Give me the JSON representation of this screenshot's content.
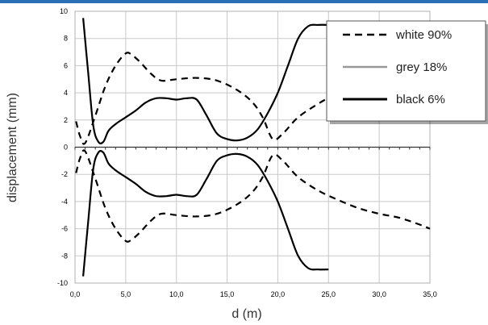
{
  "chart_data": {
    "type": "line",
    "title": "",
    "xlabel": "d (m)",
    "ylabel": "displacement (mm)",
    "xlim": [
      0,
      35
    ],
    "ylim": [
      -10,
      10
    ],
    "x_ticks": [
      "0,0",
      "5,0",
      "10,0",
      "15,0",
      "20,0",
      "25,0",
      "30,0",
      "35,0"
    ],
    "y_ticks": [
      "10",
      "8",
      "6",
      "4",
      "2",
      "0",
      "-2",
      "-4",
      "-6",
      "-8",
      "-10"
    ],
    "grid": true,
    "legend_position": "top-right",
    "series": [
      {
        "name": "white 90%",
        "style": "dashed",
        "color": "#000000",
        "x": [
          0.1,
          0.5,
          1.0,
          2.0,
          3.0,
          4.0,
          5.0,
          5.6,
          6.5,
          7.5,
          8.5,
          10.0,
          12.0,
          14.0,
          16.0,
          17.5,
          18.5,
          19.5,
          20.5,
          22.0,
          24.0,
          25.0,
          26.0
        ],
        "values": [
          1.9,
          0.8,
          0.3,
          2.3,
          4.5,
          6.0,
          6.9,
          6.8,
          6.2,
          5.4,
          4.9,
          5.0,
          5.1,
          4.9,
          4.2,
          3.3,
          2.2,
          0.6,
          1.0,
          2.2,
          3.2,
          3.6,
          3.8
        ]
      },
      {
        "name": "white 90%",
        "style": "dashed",
        "color": "#000000",
        "x": [
          0.1,
          0.5,
          1.0,
          2.0,
          3.0,
          4.0,
          5.0,
          5.6,
          6.5,
          7.5,
          8.5,
          10.0,
          12.0,
          14.0,
          16.0,
          17.5,
          18.5,
          19.5,
          20.5,
          22.0,
          24.0,
          26.0,
          28.0,
          30.0,
          32.0,
          34.0,
          35.0
        ],
        "values": [
          -1.9,
          -0.8,
          -0.3,
          -2.3,
          -4.5,
          -6.0,
          -6.9,
          -6.8,
          -6.2,
          -5.4,
          -4.9,
          -5.0,
          -5.1,
          -4.9,
          -4.2,
          -3.3,
          -2.2,
          -0.6,
          -1.0,
          -2.2,
          -3.2,
          -3.9,
          -4.5,
          -4.9,
          -5.2,
          -5.7,
          -6.0
        ]
      },
      {
        "name": "black 6%",
        "style": "solid",
        "color": "#000000",
        "x": [
          0.8,
          1.3,
          1.8,
          2.3,
          2.8,
          3.3,
          4.0,
          5.0,
          6.0,
          7.0,
          8.0,
          9.0,
          10.0,
          11.0,
          12.0,
          13.0,
          14.0,
          15.0,
          16.0,
          17.0,
          18.0,
          19.0,
          20.0,
          21.0,
          22.0,
          23.0,
          24.0,
          25.0
        ],
        "values": [
          9.5,
          5.5,
          1.6,
          0.4,
          0.4,
          1.2,
          1.7,
          2.2,
          2.7,
          3.3,
          3.6,
          3.6,
          3.5,
          3.6,
          3.5,
          2.3,
          1.0,
          0.6,
          0.5,
          0.7,
          1.3,
          2.5,
          4.0,
          6.0,
          8.0,
          8.9,
          9.0,
          9.0
        ]
      },
      {
        "name": "black 6%",
        "style": "solid",
        "color": "#000000",
        "x": [
          0.8,
          1.3,
          1.8,
          2.3,
          2.8,
          3.3,
          4.0,
          5.0,
          6.0,
          7.0,
          8.0,
          9.0,
          10.0,
          11.0,
          12.0,
          13.0,
          14.0,
          15.0,
          16.0,
          17.0,
          18.0,
          19.0,
          20.0,
          21.0,
          22.0,
          23.0,
          24.0,
          25.0
        ],
        "values": [
          -9.5,
          -5.5,
          -1.6,
          -0.4,
          -0.4,
          -1.2,
          -1.7,
          -2.2,
          -2.7,
          -3.3,
          -3.6,
          -3.6,
          -3.5,
          -3.6,
          -3.5,
          -2.3,
          -1.0,
          -0.6,
          -0.5,
          -0.7,
          -1.3,
          -2.5,
          -4.0,
          -6.0,
          -8.0,
          -8.9,
          -9.0,
          -9.0
        ]
      }
    ],
    "legend": [
      {
        "label": "white 90%",
        "style": "dashed",
        "color": "#000000"
      },
      {
        "label": "grey 18%",
        "style": "solid",
        "color": "#999999"
      },
      {
        "label": "black 6%",
        "style": "solid",
        "color": "#000000"
      }
    ]
  }
}
